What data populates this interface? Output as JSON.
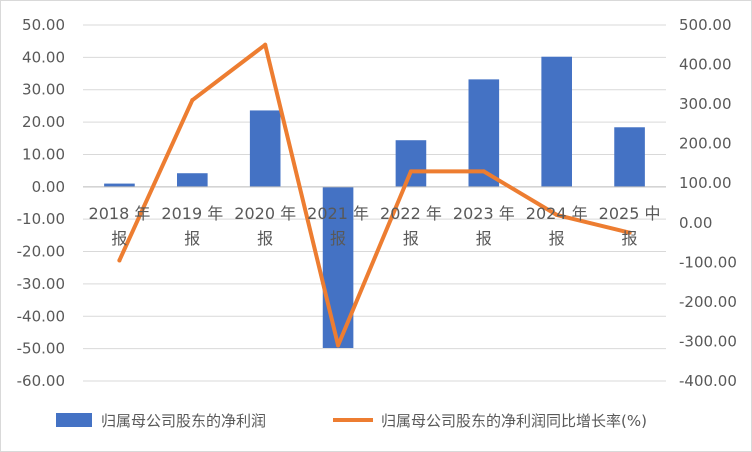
{
  "chart_data": {
    "type": "bar",
    "categories": [
      "2018年报",
      "2019年报",
      "2020年报",
      "2021年报",
      "2022年报",
      "2023年报",
      "2024年报",
      "2025中报"
    ],
    "category_lines": [
      [
        "2018 年",
        "报"
      ],
      [
        "2019 年",
        "报"
      ],
      [
        "2020 年",
        "报"
      ],
      [
        "2021 年",
        "报"
      ],
      [
        "2022 年",
        "报"
      ],
      [
        "2023 年",
        "报"
      ],
      [
        "2024 年",
        "报"
      ],
      [
        "2025 中",
        "报"
      ]
    ],
    "series": [
      {
        "name": "归属母公司股东的净利润",
        "type": "bar",
        "axis": "left",
        "color": "#4472c4",
        "values": [
          1.0,
          4.2,
          23.6,
          -49.8,
          14.4,
          33.2,
          40.2,
          18.4
        ]
      },
      {
        "name": "归属母公司股东的净利润同比增长率(%)",
        "type": "line",
        "axis": "right",
        "color": "#ed7d31",
        "values": [
          -95,
          310,
          450,
          -310,
          130,
          130,
          20,
          -25
        ]
      }
    ],
    "y_left": {
      "lim": [
        -60,
        50
      ],
      "ticks": [
        "50.00",
        "40.00",
        "30.00",
        "20.00",
        "10.00",
        "0.00",
        "-10.00",
        "-20.00",
        "-30.00",
        "-40.00",
        "-50.00",
        "-60.00"
      ]
    },
    "y_right": {
      "lim": [
        -400,
        500
      ],
      "ticks": [
        "500.00",
        "400.00",
        "300.00",
        "200.00",
        "100.00",
        "0.00",
        "-100.00",
        "-200.00",
        "-300.00",
        "-400.00"
      ]
    },
    "grid": true,
    "legend": "bottom"
  }
}
